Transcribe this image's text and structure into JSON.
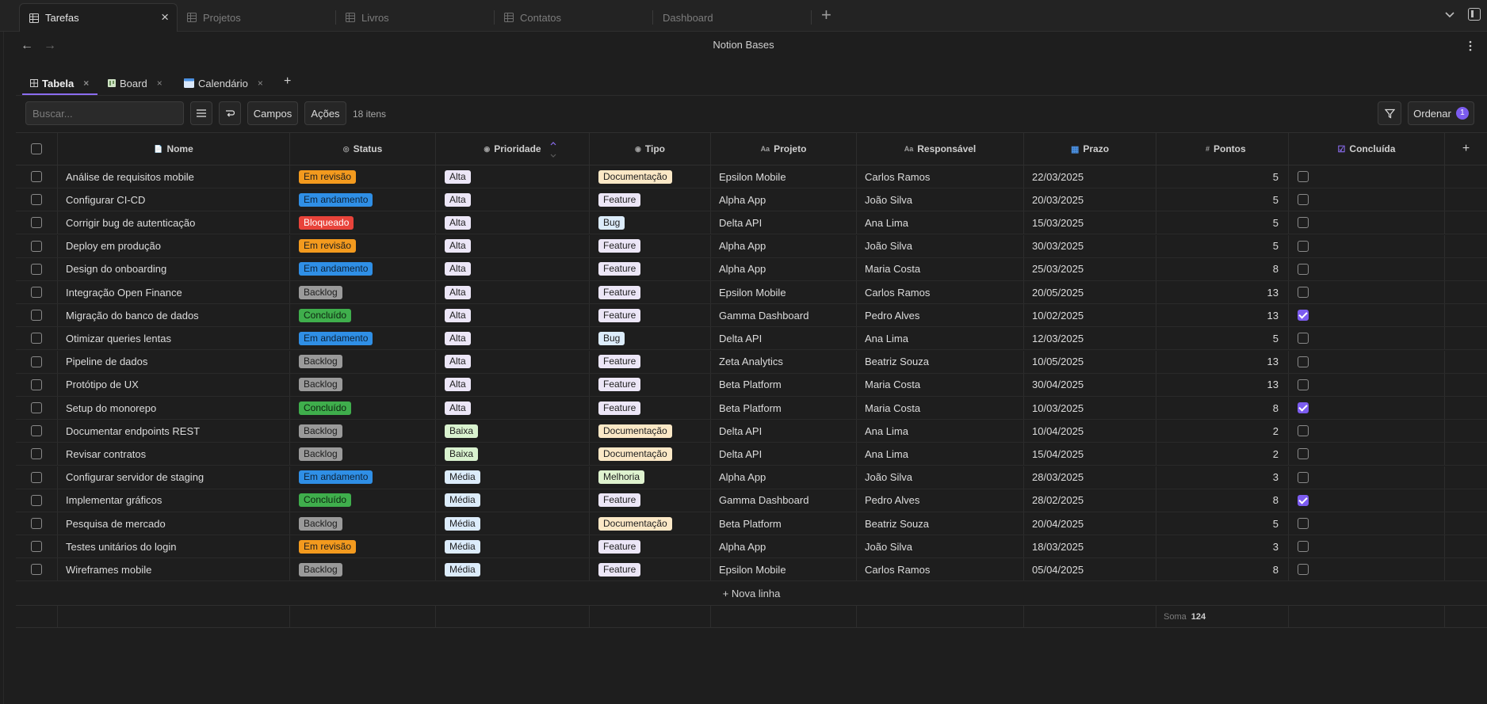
{
  "tabs": [
    {
      "label": "Tarefas",
      "active": true
    },
    {
      "label": "Projetos",
      "active": false
    },
    {
      "label": "Livros",
      "active": false
    },
    {
      "label": "Contatos",
      "active": false
    },
    {
      "label": "Dashboard",
      "active": false
    }
  ],
  "icons": {
    "tab_close": "×",
    "tab_add": "+",
    "back": "←",
    "forward": "→",
    "view_close": "×",
    "view_add": "+",
    "new_row_plus": "+"
  },
  "page": {
    "title": "Notion Bases"
  },
  "views": [
    {
      "label": "Tabela",
      "active": true
    },
    {
      "label": "Board",
      "active": false
    },
    {
      "label": "Calendário",
      "active": false
    }
  ],
  "toolbar": {
    "search_placeholder": "Buscar...",
    "fields_label": "Campos",
    "actions_label": "Ações",
    "item_count": "18 itens",
    "sort_label": "Ordenar",
    "sort_count": "1"
  },
  "columns": {
    "name": "Nome",
    "status": "Status",
    "priority": "Prioridade",
    "type": "Tipo",
    "project": "Projeto",
    "owner": "Responsável",
    "due": "Prazo",
    "points": "Pontos",
    "done": "Concluída",
    "add_column": "+"
  },
  "column_icons": {
    "name": "📄",
    "status": "◎",
    "priority": "◉",
    "type": "◉",
    "project": "Aa",
    "owner": "Aa",
    "due": "▦",
    "points": "#",
    "done": "☑"
  },
  "status_colors": {
    "Em revisão": {
      "bg": "#f39a1e",
      "fg": "#1e1e1e"
    },
    "Em andamento": {
      "bg": "#2f8fe6",
      "fg": "#0e2236"
    },
    "Bloqueado": {
      "bg": "#e8433a",
      "fg": "#ffffff"
    },
    "Backlog": {
      "bg": "#9a9a9a",
      "fg": "#1e1e1e"
    },
    "Concluído": {
      "bg": "#3fae4c",
      "fg": "#0d2410"
    }
  },
  "priority_colors": {
    "Alta": {
      "bg": "#ece6f7",
      "fg": "#1e1e1e"
    },
    "Baixa": {
      "bg": "#d9f2cf",
      "fg": "#1e1e1e"
    },
    "Média": {
      "bg": "#dcecfb",
      "fg": "#1e1e1e"
    }
  },
  "type_colors": {
    "Documentação": {
      "bg": "#fbe8c6",
      "fg": "#1e1e1e"
    },
    "Feature": {
      "bg": "#ece6f7",
      "fg": "#1e1e1e"
    },
    "Bug": {
      "bg": "#dcecfb",
      "fg": "#1e1e1e"
    },
    "Melhoria": {
      "bg": "#dff3cf",
      "fg": "#1e1e1e"
    }
  },
  "rows": [
    {
      "name": "Análise de requisitos mobile",
      "status": "Em revisão",
      "priority": "Alta",
      "type": "Documentação",
      "project": "Epsilon Mobile",
      "owner": "Carlos Ramos",
      "due": "22/03/2025",
      "points": "5",
      "done": false
    },
    {
      "name": "Configurar CI-CD",
      "status": "Em andamento",
      "priority": "Alta",
      "type": "Feature",
      "project": "Alpha App",
      "owner": "João Silva",
      "due": "20/03/2025",
      "points": "5",
      "done": false
    },
    {
      "name": "Corrigir bug de autenticação",
      "status": "Bloqueado",
      "priority": "Alta",
      "type": "Bug",
      "project": "Delta API",
      "owner": "Ana Lima",
      "due": "15/03/2025",
      "points": "5",
      "done": false
    },
    {
      "name": "Deploy em produção",
      "status": "Em revisão",
      "priority": "Alta",
      "type": "Feature",
      "project": "Alpha App",
      "owner": "João Silva",
      "due": "30/03/2025",
      "points": "5",
      "done": false
    },
    {
      "name": "Design do onboarding",
      "status": "Em andamento",
      "priority": "Alta",
      "type": "Feature",
      "project": "Alpha App",
      "owner": "Maria Costa",
      "due": "25/03/2025",
      "points": "8",
      "done": false
    },
    {
      "name": "Integração Open Finance",
      "status": "Backlog",
      "priority": "Alta",
      "type": "Feature",
      "project": "Epsilon Mobile",
      "owner": "Carlos Ramos",
      "due": "20/05/2025",
      "points": "13",
      "done": false
    },
    {
      "name": "Migração do banco de dados",
      "status": "Concluído",
      "priority": "Alta",
      "type": "Feature",
      "project": "Gamma Dashboard",
      "owner": "Pedro Alves",
      "due": "10/02/2025",
      "points": "13",
      "done": true
    },
    {
      "name": "Otimizar queries lentas",
      "status": "Em andamento",
      "priority": "Alta",
      "type": "Bug",
      "project": "Delta API",
      "owner": "Ana Lima",
      "due": "12/03/2025",
      "points": "5",
      "done": false
    },
    {
      "name": "Pipeline de dados",
      "status": "Backlog",
      "priority": "Alta",
      "type": "Feature",
      "project": "Zeta Analytics",
      "owner": "Beatriz Souza",
      "due": "10/05/2025",
      "points": "13",
      "done": false
    },
    {
      "name": "Protótipo de UX",
      "status": "Backlog",
      "priority": "Alta",
      "type": "Feature",
      "project": "Beta Platform",
      "owner": "Maria Costa",
      "due": "30/04/2025",
      "points": "13",
      "done": false
    },
    {
      "name": "Setup do monorepo",
      "status": "Concluído",
      "priority": "Alta",
      "type": "Feature",
      "project": "Beta Platform",
      "owner": "Maria Costa",
      "due": "10/03/2025",
      "points": "8",
      "done": true
    },
    {
      "name": "Documentar endpoints REST",
      "status": "Backlog",
      "priority": "Baixa",
      "type": "Documentação",
      "project": "Delta API",
      "owner": "Ana Lima",
      "due": "10/04/2025",
      "points": "2",
      "done": false
    },
    {
      "name": "Revisar contratos",
      "status": "Backlog",
      "priority": "Baixa",
      "type": "Documentação",
      "project": "Delta API",
      "owner": "Ana Lima",
      "due": "15/04/2025",
      "points": "2",
      "done": false
    },
    {
      "name": "Configurar servidor de staging",
      "status": "Em andamento",
      "priority": "Média",
      "type": "Melhoria",
      "project": "Alpha App",
      "owner": "João Silva",
      "due": "28/03/2025",
      "points": "3",
      "done": false
    },
    {
      "name": "Implementar gráficos",
      "status": "Concluído",
      "priority": "Média",
      "type": "Feature",
      "project": "Gamma Dashboard",
      "owner": "Pedro Alves",
      "due": "28/02/2025",
      "points": "8",
      "done": true
    },
    {
      "name": "Pesquisa de mercado",
      "status": "Backlog",
      "priority": "Média",
      "type": "Documentação",
      "project": "Beta Platform",
      "owner": "Beatriz Souza",
      "due": "20/04/2025",
      "points": "5",
      "done": false
    },
    {
      "name": "Testes unitários do login",
      "status": "Em revisão",
      "priority": "Média",
      "type": "Feature",
      "project": "Alpha App",
      "owner": "João Silva",
      "due": "18/03/2025",
      "points": "3",
      "done": false
    },
    {
      "name": "Wireframes mobile",
      "status": "Backlog",
      "priority": "Média",
      "type": "Feature",
      "project": "Epsilon Mobile",
      "owner": "Carlos Ramos",
      "due": "05/04/2025",
      "points": "8",
      "done": false
    }
  ],
  "new_row_label": "+ Nova linha",
  "footer": {
    "sum_label": "Soma",
    "sum_value": "124"
  }
}
